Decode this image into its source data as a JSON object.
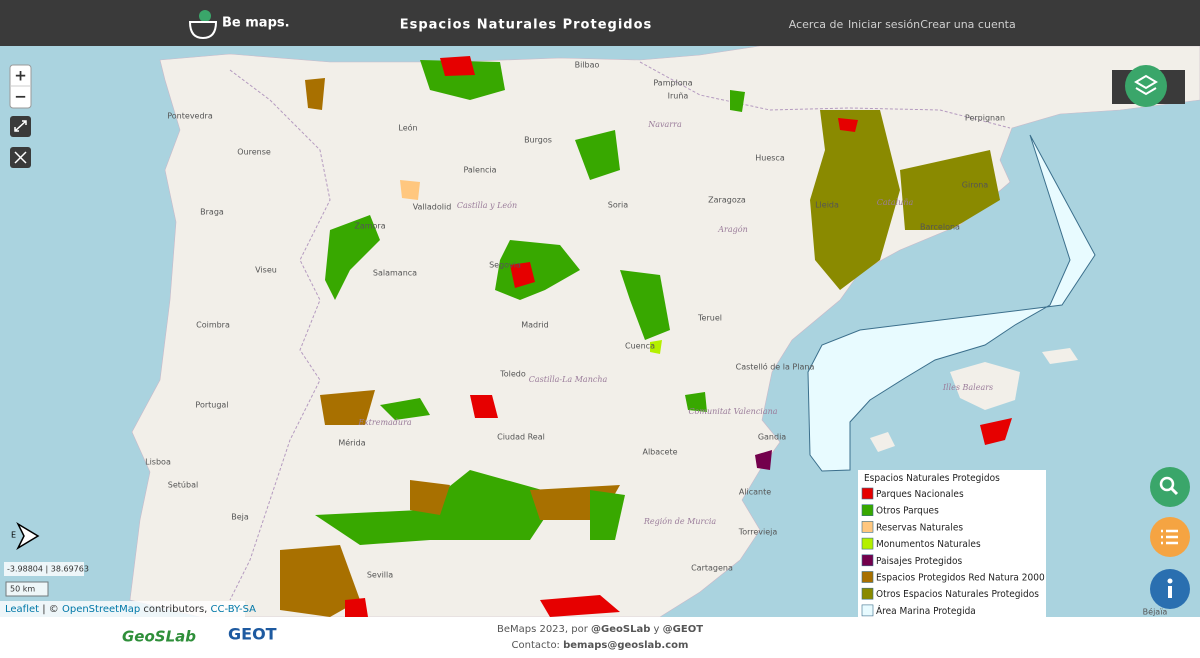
{
  "header": {
    "logo": "Be maps.",
    "title": "Espacios Naturales Protegidos",
    "nav": [
      "Acerca de",
      "Iniciar sesión",
      "Crear una cuenta"
    ]
  },
  "map": {
    "zoom_in": "+",
    "zoom_out": "−",
    "places": [
      "Pontevedra",
      "Ourense",
      "Braga",
      "Viseu",
      "Coimbra",
      "Portugal",
      "Lisboa",
      "Setúbal",
      "Beja",
      "León",
      "Burgos",
      "Palencia",
      "Valladolid",
      "Zamora",
      "Salamanca",
      "Bilbao",
      "Pamplona",
      "Iruña",
      "Soria",
      "Zaragoza",
      "Huesca",
      "Lleida",
      "Girona",
      "Barcelona",
      "Perpignan",
      "Segovia",
      "Madrid",
      "Toledo",
      "Cuenca",
      "Teruel",
      "Castelló de la Plana",
      "Ciudad Real",
      "Mérida",
      "Sevilla",
      "Albacete",
      "Alicante",
      "Torrevieja",
      "Cartagena",
      "Gandia",
      "Béjaïa"
    ],
    "regions": [
      "Castilla y León",
      "Aragón",
      "Cataluña",
      "Navarra",
      "Castilla-La Mancha",
      "Extremadura",
      "Comunitat Valenciana",
      "Región de Murcia",
      "Illes Balears"
    ],
    "coordinates": "-3.98804 | 38.69763",
    "scale": "50 km",
    "attribution": [
      "Leaflet",
      " | © ",
      "OpenStreetMap",
      " contributors, ",
      "CC-BY-SA"
    ]
  },
  "legend": {
    "title": "Espacios Naturales Protegidos",
    "items": [
      {
        "label": "Parques Nacionales",
        "color": "#e60000"
      },
      {
        "label": "Otros Parques",
        "color": "#38a800"
      },
      {
        "label": "Reservas Naturales",
        "color": "#ffc77f"
      },
      {
        "label": "Monumentos Naturales",
        "color": "#b4f000"
      },
      {
        "label": "Paisajes Protegidos",
        "color": "#73004c"
      },
      {
        "label": "Espacios Protegidos Red Natura 2000",
        "color": "#a87000"
      },
      {
        "label": "Otros Espacios Naturales Protegidos",
        "color": "#8a8a00"
      },
      {
        "label": "Área Marina Protegida",
        "color": "#e8fbff"
      }
    ]
  },
  "footer": {
    "logo_left": "GeoSLab",
    "logo_right": "GEOT",
    "credit": [
      "BeMaps 2023, por ",
      "@GeoSLab",
      " y ",
      "@GEOT"
    ],
    "contact": [
      "Contacto: ",
      "bemaps@geoslab.com"
    ]
  }
}
